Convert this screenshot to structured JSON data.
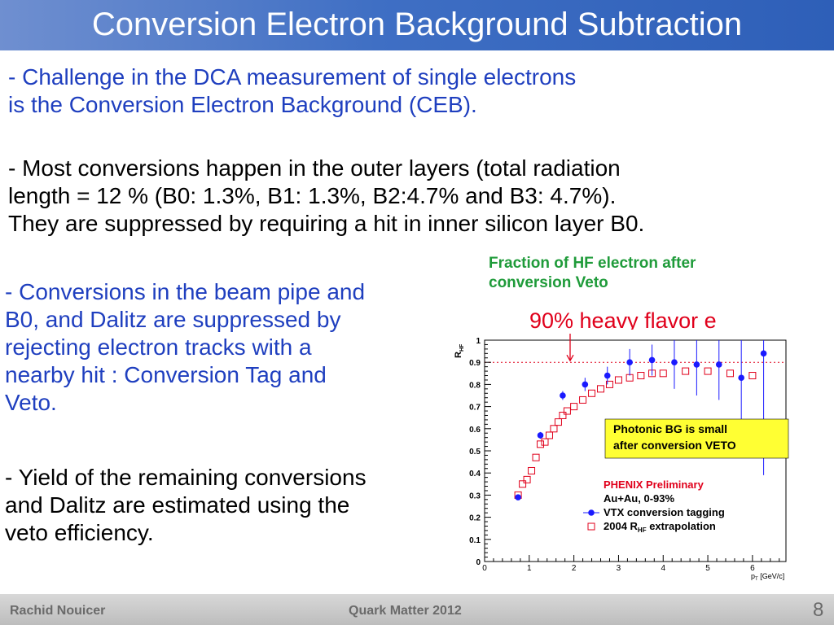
{
  "slide": {
    "title": "Conversion Electron Background Subtraction",
    "bullets": {
      "b1": [
        "-  Challenge in the DCA measurement of single electrons",
        "   is the Conversion Electron Background (CEB)."
      ],
      "b2": [
        "- Most conversions happen in the outer layers (total radiation",
        "  length = 12 % (B0: 1.3%, B1: 1.3%, B2:4.7% and B3: 4.7%).",
        "  They are suppressed by requiring a hit in inner silicon layer B0."
      ],
      "b3": [
        "- Conversions in the beam pipe and",
        "  B0, and Dalitz are suppressed by",
        "  rejecting electron tracks with a",
        "  nearby hit : Conversion Tag and",
        "  Veto."
      ],
      "b4": [
        "- Yield of the remaining conversions",
        "   and Dalitz are estimated using the",
        "   veto efficiency."
      ]
    },
    "hf_note": [
      "Fraction of HF electron after",
      "conversion Veto"
    ],
    "hf_label": "90% heavy flavor e",
    "colors": {
      "title_bar": "#3f6fc4",
      "blue_text": "#1f3fbf",
      "green_text": "#1f9b3a",
      "red": "#e0001b",
      "marker_blue": "#1a1aff",
      "callout_fill": "#ffff33"
    }
  },
  "footer": {
    "author": "Rachid Nouicer",
    "conference": "Quark Matter 2012",
    "page": "8"
  },
  "chart_data": {
    "type": "scatter",
    "ylabel_main": "R",
    "ylabel_sub": "HF",
    "xlabel": "p",
    "xlabel_sub": "T",
    "xlabel_unit": "[GeV/c]",
    "xlim": [
      0,
      6.75
    ],
    "ylim": [
      0,
      1
    ],
    "x_ticks": [
      "0",
      "1",
      "2",
      "3",
      "4",
      "5",
      "6"
    ],
    "y_ticks": [
      "0",
      "0.1",
      "0.2",
      "0.3",
      "0.4",
      "0.5",
      "0.6",
      "0.7",
      "0.8",
      "0.9",
      "1"
    ],
    "reference_line": 0.9,
    "callout": [
      "Photonic BG is small",
      "after conversion VETO"
    ],
    "legend": {
      "header": "PHENIX Preliminary",
      "subheader": "Au+Au, 0-93%",
      "entries": [
        "VTX conversion tagging",
        "2004 R",
        "HF",
        " extrapolation"
      ]
    },
    "series": [
      {
        "name": "VTX conversion tagging",
        "marker": "filled-circle",
        "x": [
          0.75,
          1.25,
          1.75,
          2.25,
          2.75,
          3.25,
          3.75,
          4.25,
          4.75,
          5.25,
          5.75,
          6.25
        ],
        "y": [
          0.29,
          0.57,
          0.75,
          0.8,
          0.84,
          0.9,
          0.91,
          0.9,
          0.89,
          0.89,
          0.83,
          0.94
        ],
        "err": [
          0,
          0.015,
          0.02,
          0.03,
          0.04,
          0.06,
          0.07,
          0.12,
          0.14,
          0.16,
          0.22,
          0.55
        ]
      },
      {
        "name": "2004 R_HF extrapolation",
        "marker": "open-square",
        "x": [
          0.75,
          0.85,
          0.95,
          1.05,
          1.15,
          1.25,
          1.35,
          1.45,
          1.55,
          1.65,
          1.75,
          1.85,
          2.0,
          2.2,
          2.4,
          2.6,
          2.8,
          3.0,
          3.25,
          3.5,
          3.75,
          4.0,
          4.5,
          5.0,
          5.5,
          6.0
        ],
        "y": [
          0.3,
          0.35,
          0.37,
          0.41,
          0.47,
          0.53,
          0.54,
          0.57,
          0.6,
          0.63,
          0.66,
          0.68,
          0.7,
          0.73,
          0.76,
          0.78,
          0.8,
          0.82,
          0.83,
          0.84,
          0.85,
          0.85,
          0.86,
          0.86,
          0.85,
          0.84
        ]
      }
    ]
  }
}
